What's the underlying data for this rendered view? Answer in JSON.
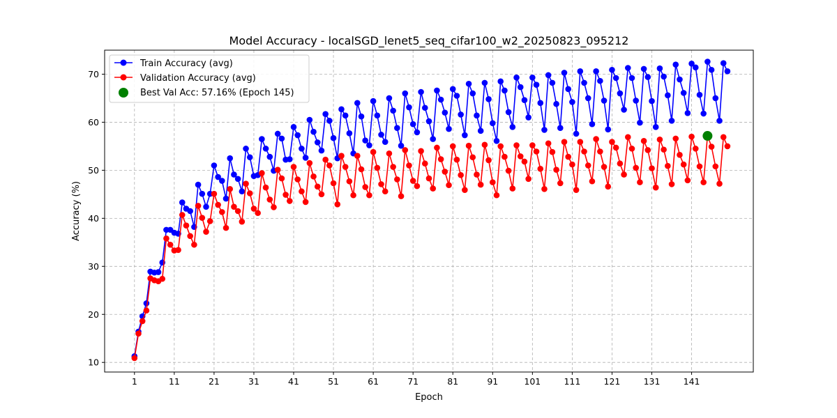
{
  "chart_data": {
    "type": "line",
    "title": "Model Accuracy - localSGD_lenet5_seq_cifar100_w2_20250823_095212",
    "xlabel": "Epoch",
    "ylabel": "Accuracy (%)",
    "xlim": [
      -6.5,
      156.5
    ],
    "ylim": [
      8,
      75
    ],
    "xticks": [
      1,
      11,
      21,
      31,
      41,
      51,
      61,
      71,
      81,
      91,
      101,
      111,
      121,
      131,
      141
    ],
    "yticks": [
      10,
      20,
      30,
      40,
      50,
      60,
      70
    ],
    "grid": true,
    "legend_position": "top-left",
    "x": [
      1,
      2,
      3,
      4,
      5,
      6,
      7,
      8,
      9,
      10,
      11,
      12,
      13,
      14,
      15,
      16,
      17,
      18,
      19,
      20,
      21,
      22,
      23,
      24,
      25,
      26,
      27,
      28,
      29,
      30,
      31,
      32,
      33,
      34,
      35,
      36,
      37,
      38,
      39,
      40,
      41,
      42,
      43,
      44,
      45,
      46,
      47,
      48,
      49,
      50,
      51,
      52,
      53,
      54,
      55,
      56,
      57,
      58,
      59,
      60,
      61,
      62,
      63,
      64,
      65,
      66,
      67,
      68,
      69,
      70,
      71,
      72,
      73,
      74,
      75,
      76,
      77,
      78,
      79,
      80,
      81,
      82,
      83,
      84,
      85,
      86,
      87,
      88,
      89,
      90,
      91,
      92,
      93,
      94,
      95,
      96,
      97,
      98,
      99,
      100,
      101,
      102,
      103,
      104,
      105,
      106,
      107,
      108,
      109,
      110,
      111,
      112,
      113,
      114,
      115,
      116,
      117,
      118,
      119,
      120,
      121,
      122,
      123,
      124,
      125,
      126,
      127,
      128,
      129,
      130,
      131,
      132,
      133,
      134,
      135,
      136,
      137,
      138,
      139,
      140,
      141,
      142,
      143,
      144,
      145,
      146,
      147,
      148,
      149,
      150
    ],
    "series": [
      {
        "name": "Train Accuracy (avg)",
        "color": "#0000ff",
        "values": [
          11.3,
          16.4,
          19.6,
          22.3,
          28.9,
          28.7,
          28.8,
          30.8,
          37.6,
          37.6,
          37.0,
          36.8,
          43.3,
          42.0,
          41.5,
          38.2,
          47.0,
          45.1,
          42.4,
          45.1,
          51.0,
          48.6,
          47.8,
          44.1,
          52.5,
          49.1,
          48.2,
          45.6,
          54.5,
          52.7,
          48.8,
          49.0,
          56.5,
          54.5,
          52.8,
          49.9,
          57.6,
          56.6,
          52.2,
          52.3,
          59.0,
          57.3,
          54.5,
          52.6,
          60.5,
          58.0,
          55.8,
          54.1,
          61.7,
          60.3,
          56.7,
          52.5,
          62.7,
          61.4,
          57.7,
          53.5,
          64.0,
          61.2,
          56.2,
          55.2,
          64.4,
          61.4,
          57.4,
          55.9,
          65.0,
          62.4,
          58.8,
          55.1,
          66.0,
          63.1,
          59.6,
          57.9,
          66.3,
          63.0,
          60.2,
          56.5,
          66.6,
          64.7,
          62.0,
          58.6,
          66.9,
          65.5,
          61.6,
          57.3,
          68.0,
          66.0,
          61.4,
          58.2,
          68.2,
          64.8,
          59.8,
          56.1,
          68.5,
          66.6,
          62.1,
          59.0,
          69.3,
          67.3,
          64.6,
          61.0,
          69.3,
          67.8,
          64.0,
          58.4,
          69.8,
          68.2,
          63.8,
          58.8,
          70.3,
          66.9,
          64.2,
          57.6,
          70.6,
          68.2,
          65.0,
          59.6,
          70.6,
          68.6,
          64.5,
          58.5,
          70.9,
          69.2,
          66.0,
          62.6,
          71.3,
          69.2,
          64.5,
          59.9,
          71.1,
          69.4,
          64.4,
          59.0,
          71.2,
          69.5,
          65.6,
          60.3,
          72.0,
          68.9,
          66.1,
          61.9,
          72.2,
          71.4,
          65.7,
          61.8,
          72.6,
          70.9,
          65.0,
          60.3,
          72.3,
          70.6
        ]
      },
      {
        "name": "Validation Accuracy (avg)",
        "color": "#ff0000",
        "values": [
          10.9,
          16.0,
          18.6,
          20.8,
          27.5,
          27.1,
          26.9,
          27.4,
          35.8,
          34.5,
          33.3,
          33.4,
          40.7,
          38.5,
          36.3,
          34.5,
          42.6,
          40.1,
          37.2,
          39.4,
          45.1,
          42.8,
          41.3,
          38.0,
          46.1,
          42.4,
          41.5,
          39.3,
          47.2,
          45.2,
          42.0,
          41.1,
          49.4,
          46.4,
          43.9,
          42.3,
          50.1,
          48.3,
          44.9,
          43.6,
          50.7,
          48.1,
          45.6,
          43.4,
          51.5,
          48.7,
          46.6,
          45.0,
          52.2,
          51.0,
          47.3,
          42.9,
          53.0,
          50.7,
          47.7,
          44.8,
          53.0,
          50.2,
          46.5,
          44.8,
          53.8,
          50.5,
          47.1,
          45.6,
          53.5,
          50.7,
          48.1,
          44.6,
          54.2,
          51.0,
          47.8,
          46.7,
          54.0,
          51.4,
          48.3,
          46.2,
          54.7,
          52.3,
          49.7,
          46.9,
          55.0,
          52.2,
          49.0,
          45.9,
          55.1,
          52.7,
          49.1,
          47.0,
          55.3,
          52.1,
          47.5,
          44.8,
          55.0,
          52.8,
          49.9,
          46.2,
          55.2,
          52.9,
          51.8,
          48.2,
          55.2,
          53.9,
          50.3,
          46.1,
          55.6,
          53.8,
          50.1,
          47.3,
          55.9,
          52.8,
          51.2,
          45.9,
          55.9,
          53.9,
          51.0,
          47.7,
          56.5,
          53.9,
          50.7,
          46.6,
          55.9,
          54.7,
          51.4,
          49.1,
          56.9,
          54.5,
          50.5,
          47.5,
          56.1,
          54.2,
          50.4,
          46.4,
          56.4,
          54.3,
          50.9,
          47.1,
          56.6,
          53.2,
          51.2,
          47.9,
          57.0,
          54.5,
          50.8,
          47.5,
          57.2,
          54.9,
          50.8,
          47.2,
          56.9,
          55.0
        ]
      }
    ],
    "best": {
      "label": "Best Val Acc: 57.16% (Epoch 145)",
      "epoch": 145,
      "value": 57.16,
      "color": "#008000"
    }
  }
}
